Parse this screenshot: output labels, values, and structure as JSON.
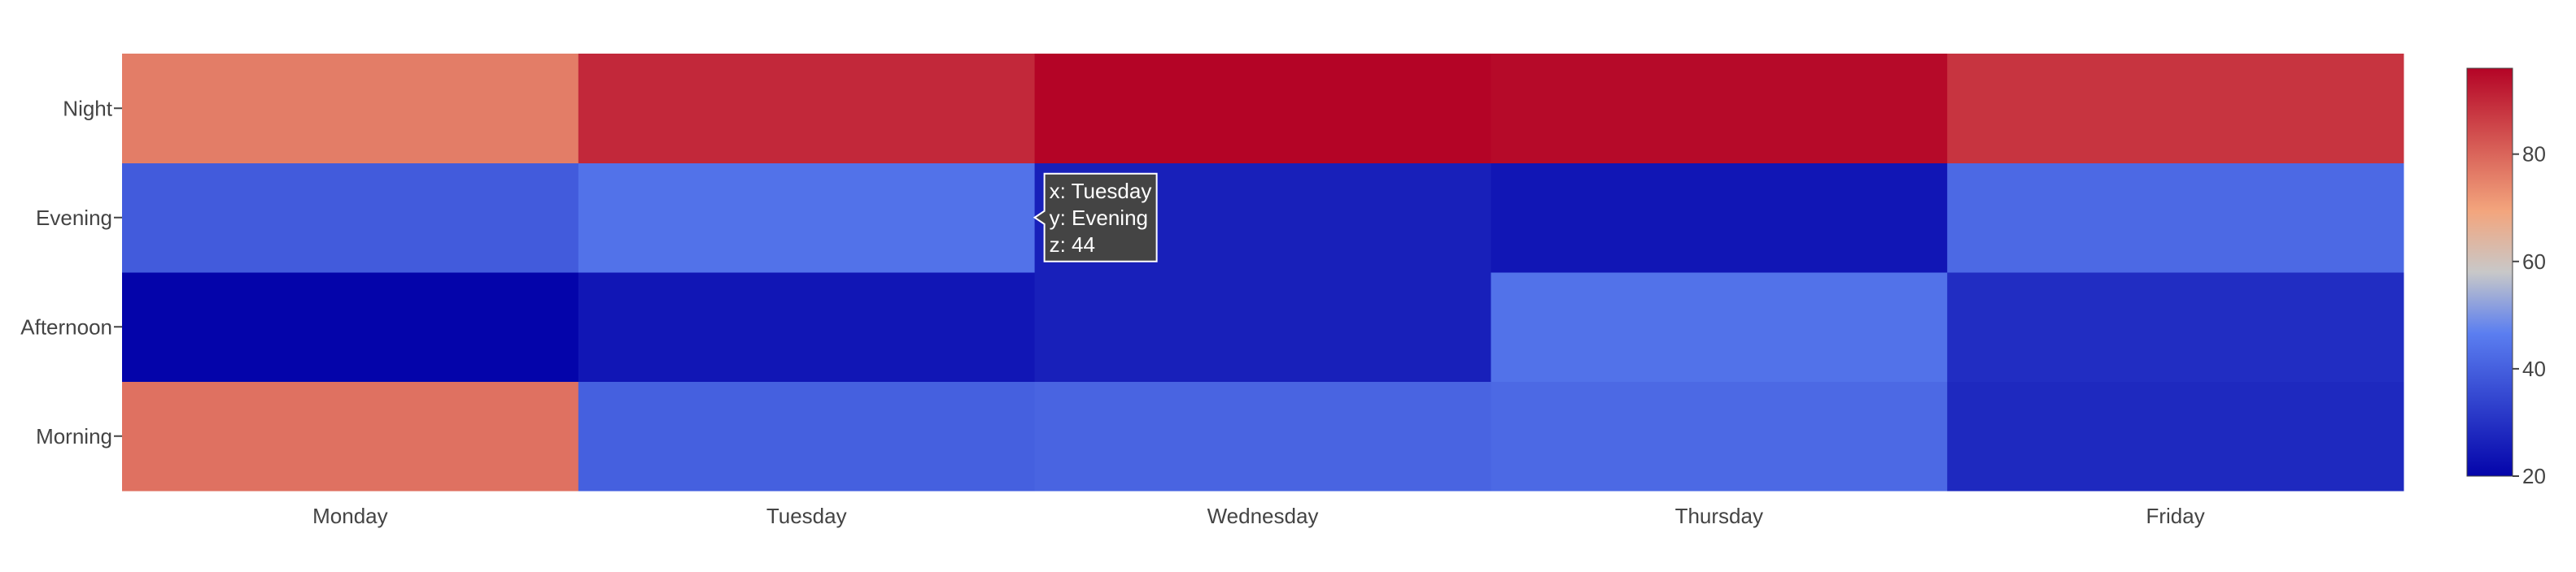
{
  "chart_data": {
    "type": "heatmap",
    "x": [
      "Monday",
      "Tuesday",
      "Wednesday",
      "Thursday",
      "Friday"
    ],
    "y": [
      "Morning",
      "Afternoon",
      "Evening",
      "Night"
    ],
    "z": [
      [
        78,
        40,
        41,
        42,
        28
      ],
      [
        20,
        24,
        26,
        44,
        29
      ],
      [
        39,
        44,
        26,
        24,
        42
      ],
      [
        76,
        90,
        96,
        95,
        88
      ]
    ],
    "zlim": [
      20,
      96
    ],
    "colorscale": [
      [
        0.0,
        "#0404aa"
      ],
      [
        0.35,
        "#5b7ef0"
      ],
      [
        0.5,
        "#c8c8c8"
      ],
      [
        0.65,
        "#f3a57d"
      ],
      [
        1.0,
        "#b40426"
      ]
    ],
    "colorbar": {
      "ticks": [
        20,
        40,
        60,
        80
      ],
      "tick_labels": [
        "20",
        "40",
        "60",
        "80"
      ]
    },
    "title": "",
    "xlabel": "",
    "ylabel": "",
    "tooltip": {
      "lines": [
        "x: Tuesday",
        "y: Evening",
        "z: 44"
      ],
      "cell_x": "Wednesday",
      "cell_y": "Evening",
      "background": "#444444"
    }
  }
}
